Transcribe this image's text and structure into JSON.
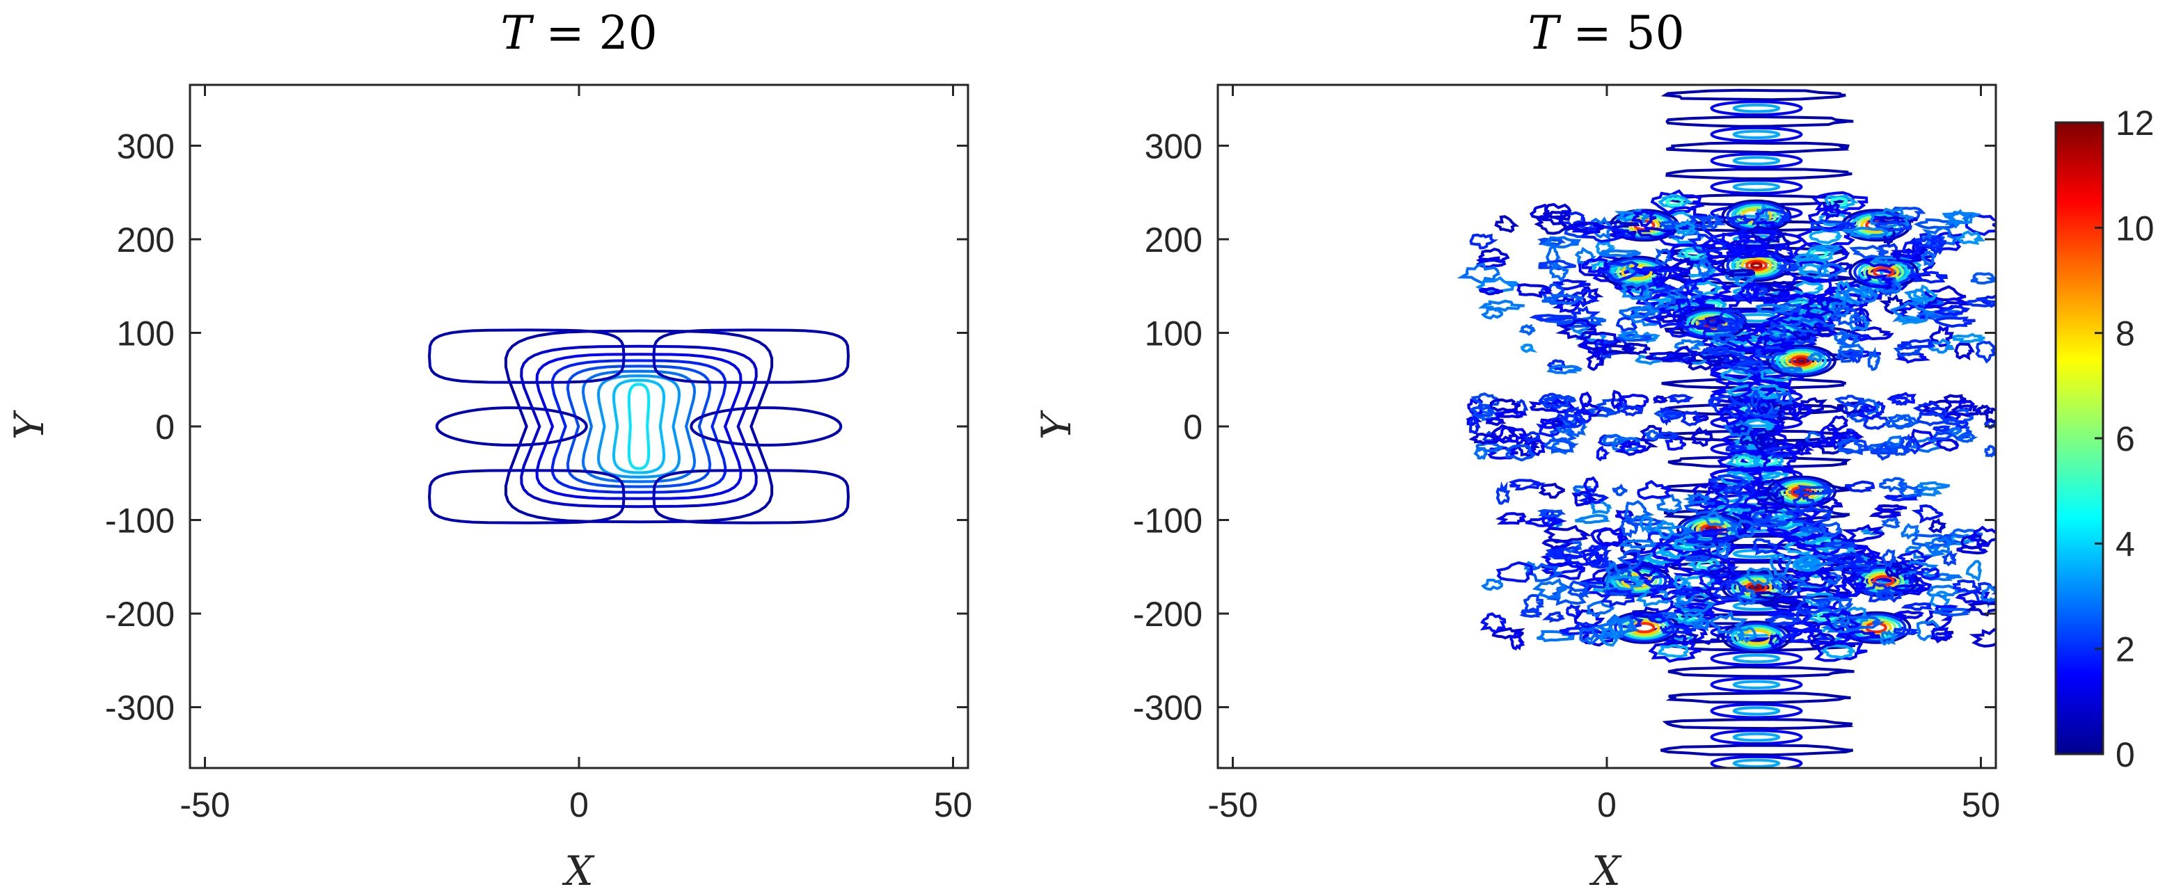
{
  "colormap": "jet",
  "colors": [
    "#00008f",
    "#0000ff",
    "#0080ff",
    "#00ffff",
    "#80ff80",
    "#ffff00",
    "#ff8000",
    "#ff0000",
    "#800000"
  ],
  "colorbar": {
    "min": 0,
    "max": 12,
    "ticks": [
      0,
      2,
      4,
      6,
      8,
      10,
      12
    ],
    "tick_labels": [
      "0",
      "2",
      "4",
      "6",
      "8",
      "10",
      "12"
    ]
  },
  "chart_data": [
    {
      "type": "contour",
      "title": "T = 20",
      "title_var": "T",
      "title_eq": " = 20",
      "xlabel": "X",
      "ylabel": "Y",
      "xlim": [
        -52,
        52
      ],
      "ylim": [
        -365,
        365
      ],
      "xticks": [
        -50,
        0,
        50
      ],
      "xtick_labels": [
        "-50",
        "0",
        "50"
      ],
      "yticks": [
        -300,
        -200,
        -100,
        0,
        100,
        200,
        300
      ],
      "ytick_labels": [
        "-300",
        "-200",
        "-100",
        "0",
        "100",
        "200",
        "300"
      ],
      "features": [
        {
          "kind": "contour-rings",
          "cx": 8,
          "cy": 0,
          "level_min": 0.5,
          "level_max": 4.2,
          "count": 9,
          "rx_outer": 20,
          "ry_outer": 102,
          "rx_inner": 1.5,
          "ry_inner": 45
        },
        {
          "kind": "lobe",
          "cx": -9,
          "cy": 0,
          "rx": 10,
          "ry": 20,
          "level": 0.5
        },
        {
          "kind": "lobe",
          "cx": 25,
          "cy": 0,
          "rx": 10,
          "ry": 20,
          "level": 0.5
        },
        {
          "kind": "wing",
          "cx": -7,
          "cy": 75,
          "rx": 13,
          "ry": 28,
          "level": 0.5
        },
        {
          "kind": "wing",
          "cx": 23,
          "cy": 75,
          "rx": 13,
          "ry": 28,
          "level": 0.5
        },
        {
          "kind": "wing",
          "cx": -7,
          "cy": -75,
          "rx": 13,
          "ry": 28,
          "level": 0.5
        },
        {
          "kind": "wing",
          "cx": 23,
          "cy": -75,
          "rx": 13,
          "ry": 28,
          "level": 0.5
        }
      ]
    },
    {
      "type": "contour",
      "title": "T = 50",
      "title_var": "T",
      "title_eq": " = 50",
      "xlabel": "X",
      "ylabel": "Y",
      "xlim": [
        -52,
        52
      ],
      "ylim": [
        -365,
        365
      ],
      "xticks": [
        -50,
        0,
        50
      ],
      "xtick_labels": [
        "-50",
        "0",
        "50"
      ],
      "yticks": [
        -300,
        -200,
        -100,
        0,
        100,
        200,
        300
      ],
      "ytick_labels": [
        "-300",
        "-200",
        "-100",
        "0",
        "100",
        "200",
        "300"
      ],
      "features": [
        {
          "kind": "axis-column",
          "cx": 20,
          "y_min": -360,
          "y_max": 360,
          "spacing": 28,
          "rx": 6,
          "ry": 7,
          "level": 1.5
        },
        {
          "kind": "axis-column-outer",
          "cx": 20,
          "y_min": -360,
          "y_max": 360,
          "spacing": 28,
          "rx": 12,
          "ry": 5,
          "level": 0.5
        },
        {
          "kind": "x-arm",
          "x0": 9,
          "y0": 240,
          "x1": 31,
          "y1": -240,
          "width": 4,
          "level": 5
        },
        {
          "kind": "x-arm",
          "x0": 31,
          "y0": 240,
          "x1": 9,
          "y1": -240,
          "width": 4,
          "level": 5
        },
        {
          "kind": "branch",
          "x0": 0,
          "y0": 170,
          "x1": 18,
          "y1": 95,
          "level": 5
        },
        {
          "kind": "branch",
          "x0": 40,
          "y0": 170,
          "x1": 22,
          "y1": 95,
          "level": 5
        },
        {
          "kind": "branch",
          "x0": 0,
          "y0": -170,
          "x1": 18,
          "y1": -95,
          "level": 5
        },
        {
          "kind": "branch",
          "x0": 40,
          "y0": -170,
          "x1": 22,
          "y1": -95,
          "level": 5
        },
        {
          "kind": "peak",
          "x": 20,
          "y": 172,
          "level": 11
        },
        {
          "kind": "peak",
          "x": 20,
          "y": -172,
          "level": 11
        },
        {
          "kind": "peak",
          "x": 14,
          "y": 110,
          "level": 11
        },
        {
          "kind": "peak",
          "x": 26,
          "y": 70,
          "level": 11
        },
        {
          "kind": "peak",
          "x": 14,
          "y": -110,
          "level": 11
        },
        {
          "kind": "peak",
          "x": 26,
          "y": -70,
          "level": 11
        },
        {
          "kind": "peak",
          "x": 5,
          "y": 215,
          "level": 10
        },
        {
          "kind": "peak",
          "x": 36,
          "y": 215,
          "level": 10
        },
        {
          "kind": "peak",
          "x": 5,
          "y": -215,
          "level": 10
        },
        {
          "kind": "peak",
          "x": 36,
          "y": -215,
          "level": 10
        },
        {
          "kind": "peak",
          "x": 37,
          "y": 165,
          "level": 10
        },
        {
          "kind": "peak",
          "x": 37,
          "y": -165,
          "level": 10
        },
        {
          "kind": "peak",
          "x": 4,
          "y": 165,
          "level": 9
        },
        {
          "kind": "peak",
          "x": 4,
          "y": -165,
          "level": 9
        },
        {
          "kind": "peak",
          "x": 20,
          "y": 225,
          "level": 9
        },
        {
          "kind": "peak",
          "x": 20,
          "y": -225,
          "level": 9
        },
        {
          "kind": "noise-band",
          "x_min": -18,
          "x_max": 52,
          "y": 0,
          "half_height": 30,
          "level": 0.8
        },
        {
          "kind": "noise-cloud",
          "x_min": -17,
          "x_max": 52,
          "y_min": 60,
          "y_max": 230,
          "level": 0.8
        },
        {
          "kind": "noise-cloud",
          "x_min": -17,
          "x_max": 52,
          "y_min": -230,
          "y_max": -60,
          "level": 0.8
        }
      ]
    }
  ]
}
